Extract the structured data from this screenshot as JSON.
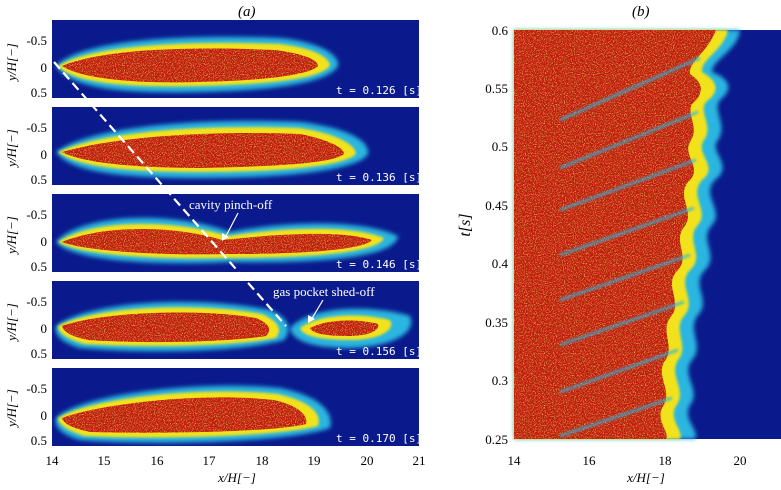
{
  "panel_a_label": "(a)",
  "panel_b_label": "(b)",
  "colors": {
    "background": "#0a1a8c",
    "cavity": "#c21a0c",
    "edge": "#f2e21c",
    "mid": "#29b6e0"
  },
  "panel_a": {
    "ylabel": "y/H[−]",
    "xlabel": "x/H[−]",
    "y_ticks": [
      "-0.5",
      "0",
      "0.5"
    ],
    "x_ticks": [
      "14",
      "15",
      "16",
      "17",
      "18",
      "19",
      "20",
      "21"
    ],
    "frames": [
      {
        "time_label": "t = 0.126 [s]",
        "cavity_end_x": 19.2
      },
      {
        "time_label": "t = 0.136 [s]",
        "cavity_end_x": 19.4
      },
      {
        "time_label": "t = 0.146 [s]",
        "cavity_end_x": 20.2
      },
      {
        "time_label": "t = 0.156 [s]",
        "cavity_end_x": 20.4
      },
      {
        "time_label": "t = 0.170 [s]",
        "cavity_end_x": 19.4
      }
    ],
    "annotations": {
      "pinch": "cavity pinch-off",
      "shed": "gas pocket shed-off"
    }
  },
  "panel_b": {
    "ylabel": "t[s]",
    "xlabel": "x/H[−]",
    "y_ticks": [
      "0.6",
      "0.55",
      "0.5",
      "0.45",
      "0.4",
      "0.35",
      "0.3",
      "0.25"
    ],
    "x_ticks": [
      "14",
      "16",
      "18",
      "20"
    ]
  }
}
